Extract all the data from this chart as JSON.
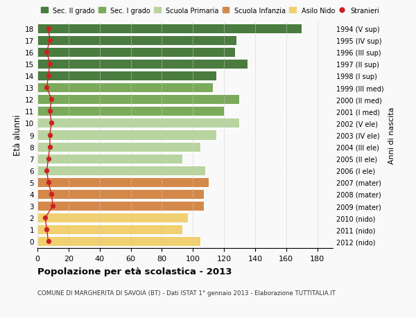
{
  "ages": [
    18,
    17,
    16,
    15,
    14,
    13,
    12,
    11,
    10,
    9,
    8,
    7,
    6,
    5,
    4,
    3,
    2,
    1,
    0
  ],
  "values": [
    170,
    128,
    127,
    135,
    115,
    113,
    130,
    120,
    130,
    115,
    105,
    93,
    108,
    110,
    107,
    107,
    97,
    93,
    105
  ],
  "stranieri": [
    7,
    8,
    6,
    8,
    7,
    6,
    9,
    8,
    9,
    8,
    8,
    7,
    6,
    7,
    9,
    10,
    5,
    6,
    7
  ],
  "right_labels": [
    "1994 (V sup)",
    "1995 (IV sup)",
    "1996 (III sup)",
    "1997 (II sup)",
    "1998 (I sup)",
    "1999 (III med)",
    "2000 (II med)",
    "2001 (I med)",
    "2002 (V ele)",
    "2003 (IV ele)",
    "2004 (III ele)",
    "2005 (II ele)",
    "2006 (I ele)",
    "2007 (mater)",
    "2008 (mater)",
    "2009 (mater)",
    "2010 (nido)",
    "2011 (nido)",
    "2012 (nido)"
  ],
  "bar_colors": [
    "#4a7c3f",
    "#4a7c3f",
    "#4a7c3f",
    "#4a7c3f",
    "#4a7c3f",
    "#7aaa5a",
    "#7aaa5a",
    "#7aaa5a",
    "#b8d4a0",
    "#b8d4a0",
    "#b8d4a0",
    "#b8d4a0",
    "#b8d4a0",
    "#d4884a",
    "#d4884a",
    "#d4884a",
    "#f0d070",
    "#f0d070",
    "#f0d070"
  ],
  "legend_items": [
    {
      "label": "Sec. II grado",
      "color": "#4a7c3f",
      "type": "patch"
    },
    {
      "label": "Sec. I grado",
      "color": "#7aaa5a",
      "type": "patch"
    },
    {
      "label": "Scuola Primaria",
      "color": "#b8d4a0",
      "type": "patch"
    },
    {
      "label": "Scuola Infanzia",
      "color": "#d4884a",
      "type": "patch"
    },
    {
      "label": "Asilo Nido",
      "color": "#f0d070",
      "type": "patch"
    },
    {
      "label": "Stranieri",
      "color": "#cc2222",
      "type": "dot"
    }
  ],
  "ylabel": "Età alunni",
  "right_ylabel": "Anni di nascita",
  "title": "Popolazione per età scolastica - 2013",
  "subtitle": "COMUNE DI MARGHERITA DI SAVOIA (BT) - Dati ISTAT 1° gennaio 2013 - Elaborazione TUTTITALIA.IT",
  "xlim": [
    0,
    190
  ],
  "xticks": [
    0,
    20,
    40,
    60,
    80,
    100,
    120,
    140,
    160,
    180
  ],
  "background_color": "#f9f9f9",
  "grid_color": "#cccccc",
  "stranieri_color": "#cc2222"
}
